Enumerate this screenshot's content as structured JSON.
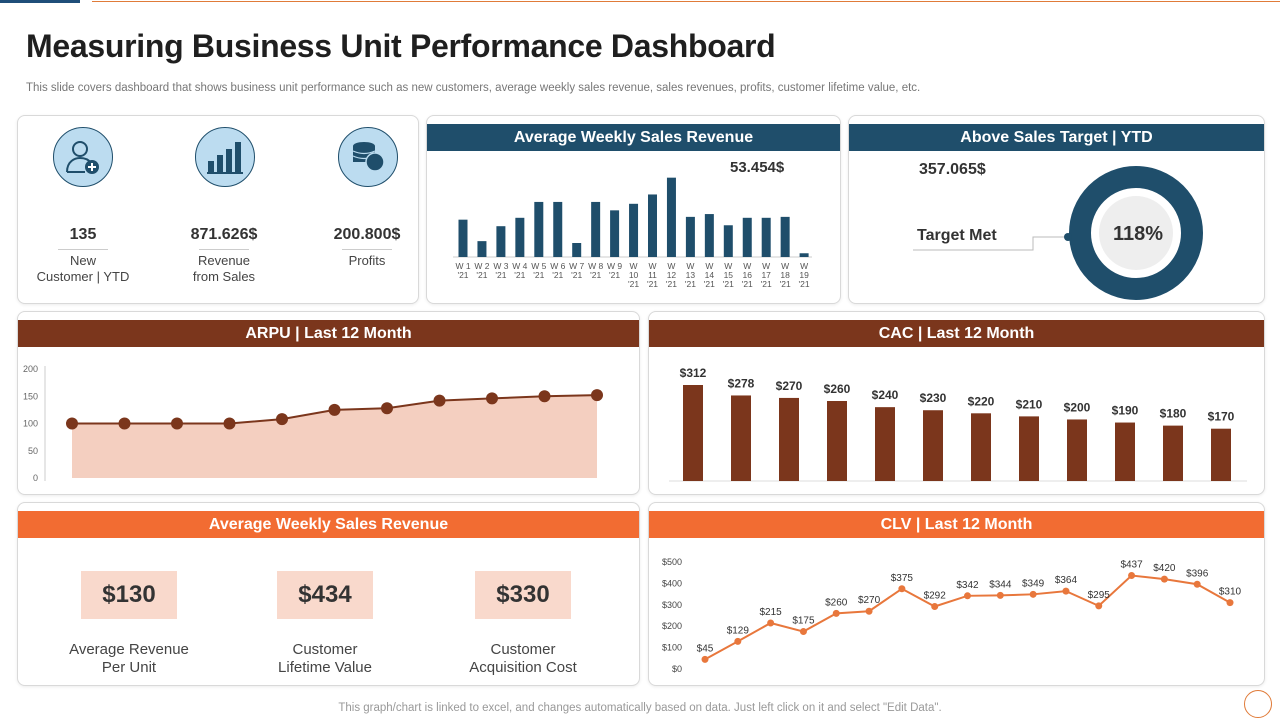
{
  "title": "Measuring Business Unit Performance Dashboard",
  "subtitle": "This slide covers dashboard that shows business unit performance such as new customers, average weekly sales revenue, sales revenues, profits, customer lifetime value, etc.",
  "footer": "This graph/chart is linked to excel,  and changes automatically based on data. Just left click on it and select \"Edit Data\".",
  "colors": {
    "blue": "#1f4e6b",
    "brown": "#7b361c",
    "orange": "#f26c32",
    "peach": "#f9d9cc"
  },
  "kpis": [
    {
      "icon": "add-user-icon",
      "value": "135",
      "label": "New\nCustomer | YTD"
    },
    {
      "icon": "bar-chart-icon",
      "value": "871.626$",
      "label": "Revenue\nfrom Sales"
    },
    {
      "icon": "coins-icon",
      "value": "200.800$",
      "label": "Profits"
    }
  ],
  "weekly_panel": {
    "title": "Average Weekly Sales Revenue",
    "callout": "53.454$"
  },
  "target_panel": {
    "title": "Above Sales Target | YTD",
    "value": "357.065$",
    "label": "Target Met",
    "percent_label": "118%"
  },
  "arpu_panel": {
    "title": "ARPU | Last 12 Month"
  },
  "cac_panel": {
    "title": "CAC | Last 12 Month"
  },
  "metrics_panel": {
    "title": "Average Weekly Sales Revenue",
    "items": [
      {
        "value": "$130",
        "label": "Average Revenue\nPer Unit"
      },
      {
        "value": "$434",
        "label": "Customer\nLifetime Value"
      },
      {
        "value": "$330",
        "label": "Customer\nAcquisition Cost"
      }
    ]
  },
  "clv_panel": {
    "title": "CLV | Last 12 Month"
  },
  "chart_data": [
    {
      "id": "weekly",
      "type": "bar",
      "categories": [
        [
          "W 1",
          "'21"
        ],
        [
          "W 2",
          "'21"
        ],
        [
          "W 3",
          "'21"
        ],
        [
          "W 4",
          "'21"
        ],
        [
          "W 5",
          "'21"
        ],
        [
          "W 6",
          "'21"
        ],
        [
          "W 7",
          "'21"
        ],
        [
          "W 8",
          "'21"
        ],
        [
          "W 9",
          "'21"
        ],
        [
          "W",
          "10",
          "'21"
        ],
        [
          "W",
          "11",
          "'21"
        ],
        [
          "W",
          "12",
          "'21"
        ],
        [
          "W",
          "13",
          "'21"
        ],
        [
          "W",
          "14",
          "'21"
        ],
        [
          "W",
          "15",
          "'21"
        ],
        [
          "W",
          "16",
          "'21"
        ],
        [
          "W",
          "17",
          "'21"
        ],
        [
          "W",
          "18",
          "'21"
        ],
        [
          "W",
          "19",
          "'21"
        ]
      ],
      "values": [
        40,
        17,
        33,
        42,
        59,
        59,
        15,
        59,
        50,
        57,
        67,
        85,
        43,
        46,
        34,
        42,
        42,
        43,
        4
      ],
      "ylim": [
        0,
        90
      ],
      "color": "#1f4e6b"
    },
    {
      "id": "target",
      "type": "pie",
      "values": [
        100
      ],
      "label": "118%",
      "color": "#1f4e6b"
    },
    {
      "id": "arpu",
      "type": "area",
      "yticks": [
        "200",
        "150",
        "100",
        "50",
        "0"
      ],
      "ylim": [
        0,
        200
      ],
      "values": [
        100,
        100,
        100,
        100,
        108,
        125,
        128,
        142,
        146,
        150,
        152
      ],
      "color": "#7b361c",
      "fill": "#f4cfc0"
    },
    {
      "id": "cac",
      "type": "bar",
      "values": [
        312,
        278,
        270,
        260,
        240,
        230,
        220,
        210,
        200,
        190,
        180,
        170
      ],
      "labels": [
        "$312",
        "$278",
        "$270",
        "$260",
        "$240",
        "$230",
        "$220",
        "$210",
        "$200",
        "$190",
        "$180",
        "$170"
      ],
      "ylim": [
        0,
        330
      ],
      "color": "#7b361c"
    },
    {
      "id": "clv",
      "type": "line",
      "yticks": [
        "$500",
        "$400",
        "$300",
        "$200",
        "$100",
        "$0"
      ],
      "ylim": [
        0,
        500
      ],
      "values": [
        45,
        129,
        215,
        175,
        260,
        270,
        375,
        292,
        342,
        344,
        349,
        364,
        295,
        437,
        420,
        396,
        310
      ],
      "labels": [
        "$45",
        "$129",
        "$215",
        "$175",
        "$260",
        "$270",
        "$375",
        "$292",
        "$342",
        "$344",
        "$349",
        "$364",
        "$295",
        "$437",
        "$420",
        "$396",
        "$310"
      ],
      "color": "#e8773c"
    }
  ]
}
